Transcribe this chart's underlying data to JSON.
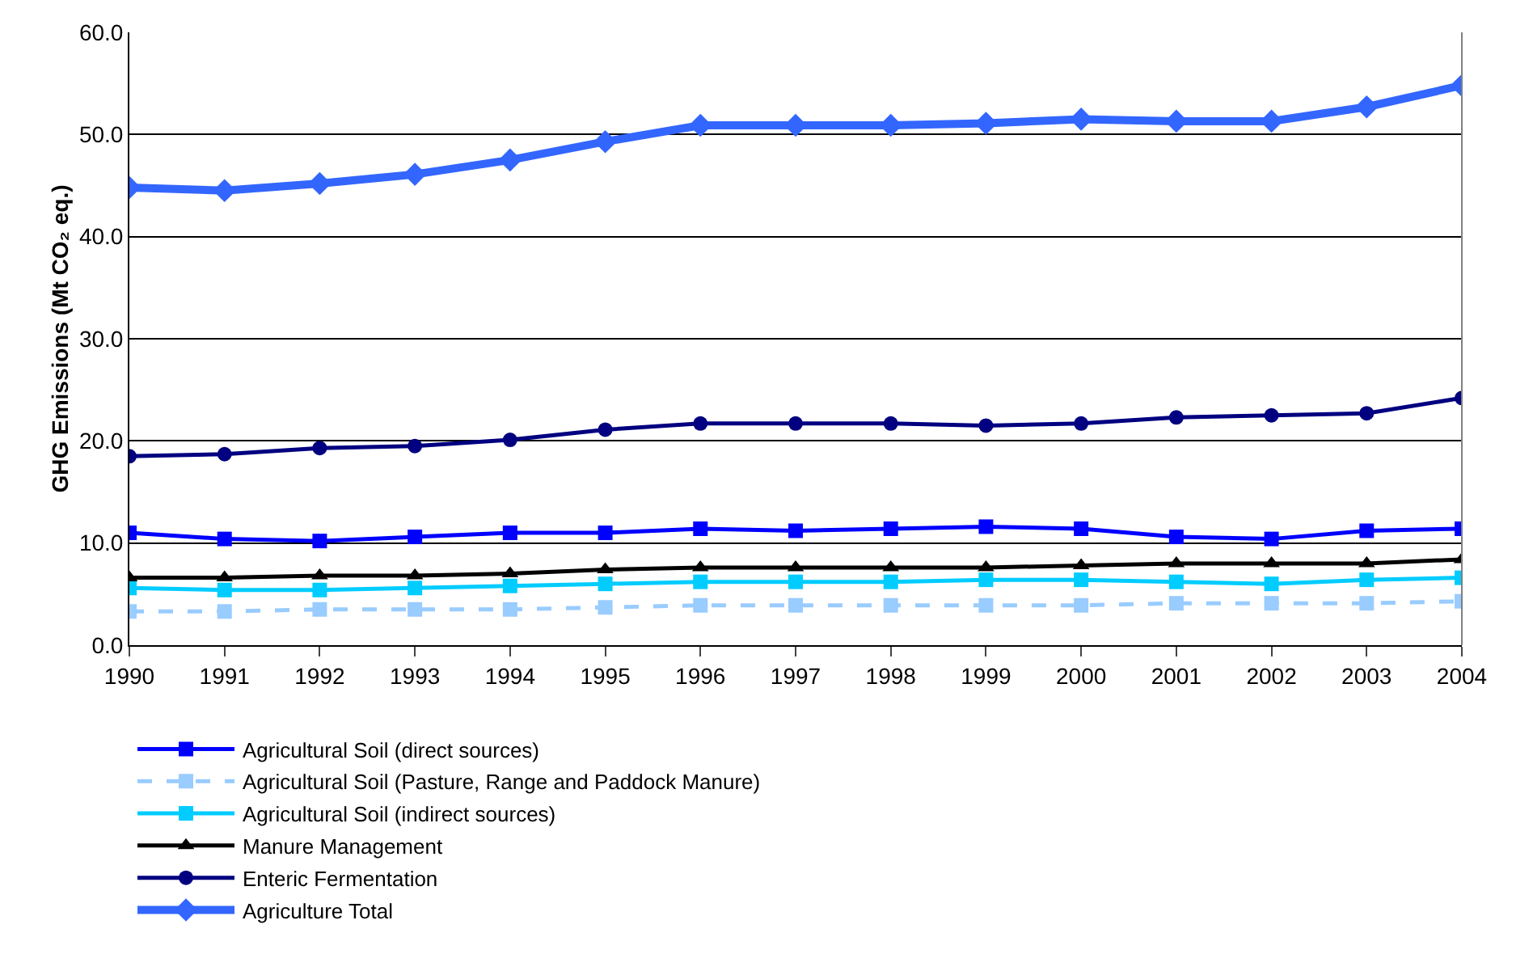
{
  "chart_data": {
    "type": "line",
    "ylabel": "GHG Emissions (Mt CO₂ eq.)",
    "categories": [
      "1990",
      "1991",
      "1992",
      "1993",
      "1994",
      "1995",
      "1996",
      "1997",
      "1998",
      "1999",
      "2000",
      "2001",
      "2002",
      "2003",
      "2004"
    ],
    "ylim": [
      0,
      60
    ],
    "yticks": [
      {
        "value": 0,
        "label": "0.0"
      },
      {
        "value": 10,
        "label": "10.0"
      },
      {
        "value": 20,
        "label": "20.0"
      },
      {
        "value": 30,
        "label": "30.0"
      },
      {
        "value": 40,
        "label": "40.0"
      },
      {
        "value": 50,
        "label": "50.0"
      },
      {
        "value": 60,
        "label": "60.0"
      }
    ],
    "grid": "y",
    "legend": "bottom",
    "series": [
      {
        "name": "Agricultural Soil (direct sources)",
        "color": "#0000ff",
        "marker": "square",
        "line_style": "solid",
        "values": [
          11.0,
          10.4,
          10.2,
          10.6,
          11.0,
          11.0,
          11.4,
          11.2,
          11.4,
          11.6,
          11.4,
          10.6,
          10.4,
          11.2,
          11.4
        ]
      },
      {
        "name": "Agricultural Soil (Pasture, Range and Paddock Manure)",
        "color": "#99ccff",
        "marker": "square",
        "line_style": "dashed",
        "values": [
          3.3,
          3.3,
          3.5,
          3.5,
          3.5,
          3.7,
          3.9,
          3.9,
          3.9,
          3.9,
          3.9,
          4.1,
          4.1,
          4.1,
          4.3
        ]
      },
      {
        "name": "Agricultural Soil (indirect sources)",
        "color": "#00ccff",
        "marker": "square",
        "line_style": "solid",
        "values": [
          5.6,
          5.4,
          5.4,
          5.6,
          5.8,
          6.0,
          6.2,
          6.2,
          6.2,
          6.4,
          6.4,
          6.2,
          6.0,
          6.4,
          6.6
        ]
      },
      {
        "name": "Manure Management",
        "color": "#000000",
        "marker": "triangle",
        "line_style": "solid",
        "values": [
          6.6,
          6.6,
          6.8,
          6.8,
          7.0,
          7.4,
          7.6,
          7.6,
          7.6,
          7.6,
          7.8,
          8.0,
          8.0,
          8.0,
          8.4
        ]
      },
      {
        "name": "Enteric Fermentation",
        "color": "#000080",
        "marker": "circle",
        "line_style": "solid",
        "values": [
          18.5,
          18.7,
          19.3,
          19.5,
          20.1,
          21.1,
          21.7,
          21.7,
          21.7,
          21.5,
          21.7,
          22.3,
          22.5,
          22.7,
          24.2
        ]
      },
      {
        "name": "Agriculture Total",
        "color": "#3366ff",
        "marker": "diamond",
        "line_style": "solid",
        "values": [
          44.8,
          44.5,
          45.2,
          46.1,
          47.5,
          49.3,
          50.9,
          50.9,
          50.9,
          51.1,
          51.5,
          51.3,
          51.3,
          52.7,
          54.8
        ]
      }
    ]
  }
}
